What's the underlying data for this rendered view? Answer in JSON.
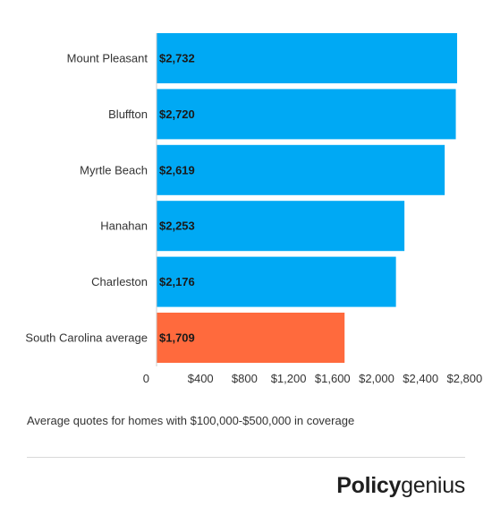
{
  "chart_data": {
    "type": "bar",
    "orientation": "horizontal",
    "categories": [
      "Mount Pleasant",
      "Bluffton",
      "Myrtle Beach",
      "Hanahan",
      "Charleston",
      "South Carolina average"
    ],
    "values": [
      2732,
      2720,
      2619,
      2253,
      2176,
      1709
    ],
    "value_labels": [
      "$2,732",
      "$2,720",
      "$2,619",
      "$2,253",
      "$2,176",
      "$1,709"
    ],
    "bar_colors": [
      "#00a9f4",
      "#00a9f4",
      "#00a9f4",
      "#00a9f4",
      "#00a9f4",
      "#ff6a3d"
    ],
    "xticks": [
      0,
      400,
      800,
      1200,
      1600,
      2000,
      2400,
      2800
    ],
    "xtick_labels": [
      "0",
      "$400",
      "$800",
      "$1,200",
      "$1,600",
      "$2,000",
      "$2,400",
      "$2,800"
    ],
    "xlim": [
      0,
      2740
    ],
    "grid": false,
    "title": "",
    "xlabel": "",
    "ylabel": ""
  },
  "footnote": "Average quotes for homes with $100,000-$500,000 in coverage",
  "logo": {
    "part1": "Policy",
    "part2": "genius"
  }
}
